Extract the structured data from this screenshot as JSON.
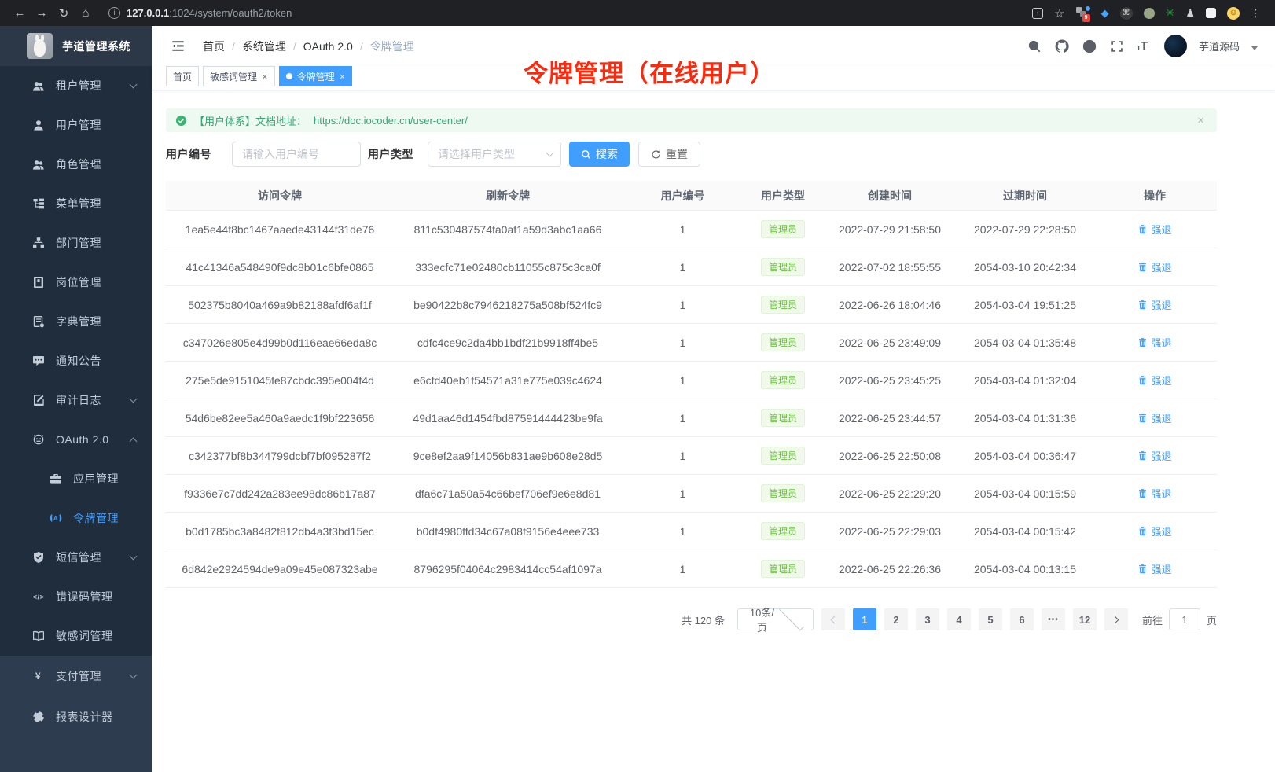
{
  "colors": {
    "accent": "#409eff",
    "success": "#67c23a",
    "sidebar_dark": "#1f2d3d",
    "sidebar_light": "#2e3c50",
    "annotation_red": "#f92a0d"
  },
  "browser": {
    "url_host": "127.0.0.1",
    "url_rest": ":1024/system/oauth2/token",
    "extension_badge": "9"
  },
  "sidebar": {
    "app_title": "芋道管理系统",
    "items": [
      {
        "label": "租户管理",
        "icon": "users-icon",
        "chevron": "down"
      },
      {
        "label": "用户管理",
        "icon": "user-icon"
      },
      {
        "label": "角色管理",
        "icon": "users-icon"
      },
      {
        "label": "菜单管理",
        "icon": "tree-icon"
      },
      {
        "label": "部门管理",
        "icon": "org-icon"
      },
      {
        "label": "岗位管理",
        "icon": "badge-icon"
      },
      {
        "label": "字典管理",
        "icon": "dict-icon"
      },
      {
        "label": "通知公告",
        "icon": "message-icon"
      },
      {
        "label": "审计日志",
        "icon": "edit-icon",
        "chevron": "down"
      },
      {
        "label": "OAuth 2.0",
        "icon": "robot-icon",
        "chevron": "up"
      },
      {
        "label": "应用管理",
        "icon": "briefcase-icon",
        "child": true
      },
      {
        "label": "令牌管理",
        "icon": "token-icon",
        "child": true,
        "active": true
      },
      {
        "label": "短信管理",
        "icon": "shield-icon",
        "chevron": "down"
      },
      {
        "label": "错误码管理",
        "icon": "code-icon"
      },
      {
        "label": "敏感词管理",
        "icon": "book-icon"
      }
    ],
    "items_bottom": [
      {
        "label": "支付管理",
        "icon": "yen-icon",
        "chevron": "down"
      },
      {
        "label": "报表设计器",
        "icon": "report-icon"
      }
    ]
  },
  "header": {
    "breadcrumbs": [
      "首页",
      "系统管理",
      "OAuth 2.0",
      "令牌管理"
    ],
    "user_name": "芋道源码"
  },
  "tabs": [
    {
      "label": "首页"
    },
    {
      "label": "敏感词管理",
      "closable": true
    },
    {
      "label": "令牌管理",
      "closable": true,
      "active": true
    }
  ],
  "annotation": "令牌管理（在线用户）",
  "alert": {
    "text": "【用户体系】文档地址：",
    "link": "https://doc.iocoder.cn/user-center/"
  },
  "filters": {
    "user_id_label": "用户编号",
    "user_id_placeholder": "请输入用户编号",
    "user_type_label": "用户类型",
    "user_type_placeholder": "请选择用户类型",
    "search_label": "搜索",
    "reset_label": "重置"
  },
  "table": {
    "columns": [
      "访问令牌",
      "刷新令牌",
      "用户编号",
      "用户类型",
      "创建时间",
      "过期时间",
      "操作"
    ],
    "user_type_tag": "管理员",
    "action_label": "强退",
    "rows": [
      {
        "access": "1ea5e44f8bc1467aaede43144f31de76",
        "refresh": "811c530487574fa0af1a59d3abc1aa66",
        "user_id": "1",
        "created": "2022-07-29 21:58:50",
        "expires": "2022-07-29 22:28:50"
      },
      {
        "access": "41c41346a548490f9dc8b01c6bfe0865",
        "refresh": "333ecfc71e02480cb11055c875c3ca0f",
        "user_id": "1",
        "created": "2022-07-02 18:55:55",
        "expires": "2054-03-10 20:42:34"
      },
      {
        "access": "502375b8040a469a9b82188afdf6af1f",
        "refresh": "be90422b8c7946218275a508bf524fc9",
        "user_id": "1",
        "created": "2022-06-26 18:04:46",
        "expires": "2054-03-04 19:51:25"
      },
      {
        "access": "c347026e805e4d99b0d116eae66eda8c",
        "refresh": "cdfc4ce9c2da4bb1bdf21b9918ff4be5",
        "user_id": "1",
        "created": "2022-06-25 23:49:09",
        "expires": "2054-03-04 01:35:48"
      },
      {
        "access": "275e5de9151045fe87cbdc395e004f4d",
        "refresh": "e6cfd40eb1f54571a31e775e039c4624",
        "user_id": "1",
        "created": "2022-06-25 23:45:25",
        "expires": "2054-03-04 01:32:04"
      },
      {
        "access": "54d6be82ee5a460a9aedc1f9bf223656",
        "refresh": "49d1aa46d1454fbd87591444423be9fa",
        "user_id": "1",
        "created": "2022-06-25 23:44:57",
        "expires": "2054-03-04 01:31:36"
      },
      {
        "access": "c342377bf8b344799dcbf7bf095287f2",
        "refresh": "9ce8ef2aa9f14056b831ae9b608e28d5",
        "user_id": "1",
        "created": "2022-06-25 22:50:08",
        "expires": "2054-03-04 00:36:47"
      },
      {
        "access": "f9336e7c7dd242a283ee98dc86b17a87",
        "refresh": "dfa6c71a50a54c66bef706ef9e6e8d81",
        "user_id": "1",
        "created": "2022-06-25 22:29:20",
        "expires": "2054-03-04 00:15:59"
      },
      {
        "access": "b0d1785bc3a8482f812db4a3f3bd15ec",
        "refresh": "b0df4980ffd34c67a08f9156e4eee733",
        "user_id": "1",
        "created": "2022-06-25 22:29:03",
        "expires": "2054-03-04 00:15:42"
      },
      {
        "access": "6d842e2924594de9a09e45e087323abe",
        "refresh": "8796295f04064c2983414cc54af1097a",
        "user_id": "1",
        "created": "2022-06-25 22:26:36",
        "expires": "2054-03-04 00:13:15"
      }
    ]
  },
  "pagination": {
    "total_label": "共 120 条",
    "page_size": "10条/页",
    "pages": [
      "1",
      "2",
      "3",
      "4",
      "5",
      "6",
      "•••",
      "12"
    ],
    "active_page": "1",
    "goto_label": "前往",
    "goto_value": "1",
    "page_suffix": "页"
  }
}
